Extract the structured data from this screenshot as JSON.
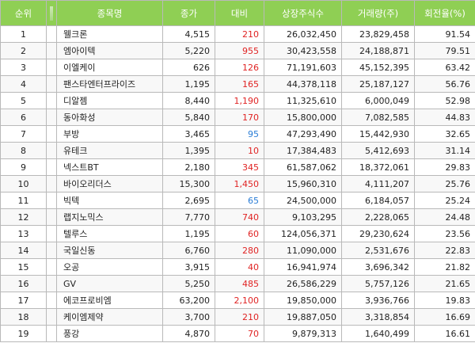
{
  "headers": {
    "rank": "순위",
    "name": "종목명",
    "close": "종가",
    "change": "대비",
    "shares": "상장주식수",
    "volume": "거래량(주)",
    "turnover": "회전율(%)"
  },
  "rows": [
    {
      "rank": "1",
      "name": "웰크론",
      "close": "4,515",
      "change": "210",
      "dir": "up",
      "shares": "26,032,450",
      "volume": "23,829,458",
      "turnover": "91.54"
    },
    {
      "rank": "2",
      "name": "엠아이텍",
      "close": "5,220",
      "change": "955",
      "dir": "up",
      "shares": "30,423,558",
      "volume": "24,188,871",
      "turnover": "79.51"
    },
    {
      "rank": "3",
      "name": "이엘케이",
      "close": "626",
      "change": "126",
      "dir": "up",
      "shares": "71,191,603",
      "volume": "45,152,395",
      "turnover": "63.42"
    },
    {
      "rank": "4",
      "name": "팬스타엔터프라이즈",
      "close": "1,195",
      "change": "165",
      "dir": "up",
      "shares": "44,378,118",
      "volume": "25,187,127",
      "turnover": "56.76"
    },
    {
      "rank": "5",
      "name": "디알젬",
      "close": "8,440",
      "change": "1,190",
      "dir": "up",
      "shares": "11,325,610",
      "volume": "6,000,049",
      "turnover": "52.98"
    },
    {
      "rank": "6",
      "name": "동아화성",
      "close": "5,840",
      "change": "170",
      "dir": "up",
      "shares": "15,800,000",
      "volume": "7,082,585",
      "turnover": "44.83"
    },
    {
      "rank": "7",
      "name": "부방",
      "close": "3,465",
      "change": "95",
      "dir": "down",
      "shares": "47,293,490",
      "volume": "15,442,930",
      "turnover": "32.65"
    },
    {
      "rank": "8",
      "name": "유테크",
      "close": "1,395",
      "change": "10",
      "dir": "up",
      "shares": "17,384,483",
      "volume": "5,412,693",
      "turnover": "31.14"
    },
    {
      "rank": "9",
      "name": "넥스트BT",
      "close": "2,180",
      "change": "345",
      "dir": "up",
      "shares": "61,587,062",
      "volume": "18,372,061",
      "turnover": "29.83"
    },
    {
      "rank": "10",
      "name": "바이오리더스",
      "close": "15,300",
      "change": "1,450",
      "dir": "up",
      "shares": "15,960,310",
      "volume": "4,111,207",
      "turnover": "25.76"
    },
    {
      "rank": "11",
      "name": "빅텍",
      "close": "2,695",
      "change": "65",
      "dir": "down",
      "shares": "24,500,000",
      "volume": "6,184,057",
      "turnover": "25.24"
    },
    {
      "rank": "12",
      "name": "랩지노믹스",
      "close": "7,770",
      "change": "740",
      "dir": "up",
      "shares": "9,103,295",
      "volume": "2,228,065",
      "turnover": "24.48"
    },
    {
      "rank": "13",
      "name": "텔루스",
      "close": "1,195",
      "change": "60",
      "dir": "up",
      "shares": "124,056,371",
      "volume": "29,230,624",
      "turnover": "23.56"
    },
    {
      "rank": "14",
      "name": "국일신동",
      "close": "6,760",
      "change": "280",
      "dir": "up",
      "shares": "11,090,000",
      "volume": "2,531,676",
      "turnover": "22.83"
    },
    {
      "rank": "15",
      "name": "오공",
      "close": "3,915",
      "change": "40",
      "dir": "up",
      "shares": "16,941,974",
      "volume": "3,696,342",
      "turnover": "21.82"
    },
    {
      "rank": "16",
      "name": "GV",
      "close": "5,250",
      "change": "485",
      "dir": "up",
      "shares": "26,586,229",
      "volume": "5,757,126",
      "turnover": "21.65"
    },
    {
      "rank": "17",
      "name": "에코프로비엠",
      "close": "63,200",
      "change": "2,100",
      "dir": "up",
      "shares": "19,850,000",
      "volume": "3,936,766",
      "turnover": "19.83"
    },
    {
      "rank": "18",
      "name": "케이엠제약",
      "close": "3,700",
      "change": "210",
      "dir": "up",
      "shares": "19,887,050",
      "volume": "3,318,854",
      "turnover": "16.69"
    },
    {
      "rank": "19",
      "name": "풍강",
      "close": "4,870",
      "change": "70",
      "dir": "up",
      "shares": "9,879,313",
      "volume": "1,640,499",
      "turnover": "16.61"
    }
  ],
  "colors": {
    "header_bg": "#8fcf54",
    "up": "#e02323",
    "down": "#2a7dd6"
  }
}
